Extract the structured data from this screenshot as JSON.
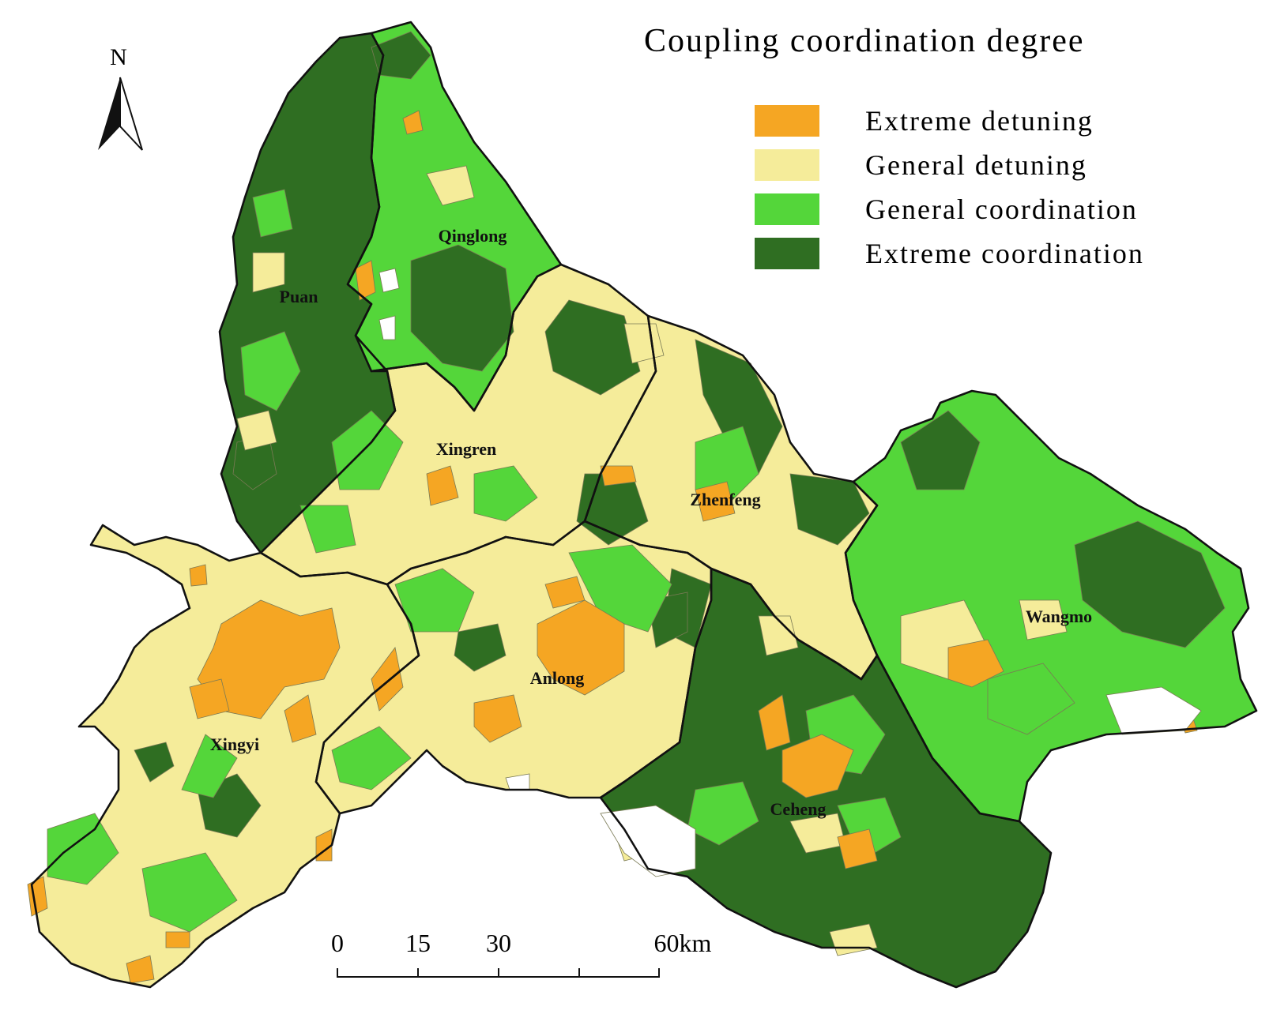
{
  "legend": {
    "title": "Coupling coordination degree",
    "items": [
      {
        "key": "extreme_detuning",
        "label": "Extreme detuning",
        "color": "#f5a623"
      },
      {
        "key": "general_detuning",
        "label": "General detuning",
        "color": "#f5ec9a"
      },
      {
        "key": "general_coordination",
        "label": "General coordination",
        "color": "#54d63a"
      },
      {
        "key": "extreme_coordination",
        "label": "Extreme coordination",
        "color": "#2f6e22"
      }
    ]
  },
  "north_arrow": {
    "label": "N"
  },
  "scale_bar": {
    "ticks": [
      "0",
      "15",
      "30",
      "60km"
    ]
  },
  "counties": [
    {
      "name": "Puan",
      "class": "extreme_coordination"
    },
    {
      "name": "Qinglong",
      "class": "general_coordination"
    },
    {
      "name": "Xingren",
      "class": "general_detuning"
    },
    {
      "name": "Zhenfeng",
      "class": "general_detuning"
    },
    {
      "name": "Wangmo",
      "class": "general_coordination"
    },
    {
      "name": "Xingyi",
      "class": "general_detuning"
    },
    {
      "name": "Anlong",
      "class": "general_detuning"
    },
    {
      "name": "Ceheng",
      "class": "extreme_coordination"
    }
  ],
  "colors": {
    "boundary": "#111111",
    "inner_line": "#7a7a55",
    "void": "#ffffff"
  }
}
